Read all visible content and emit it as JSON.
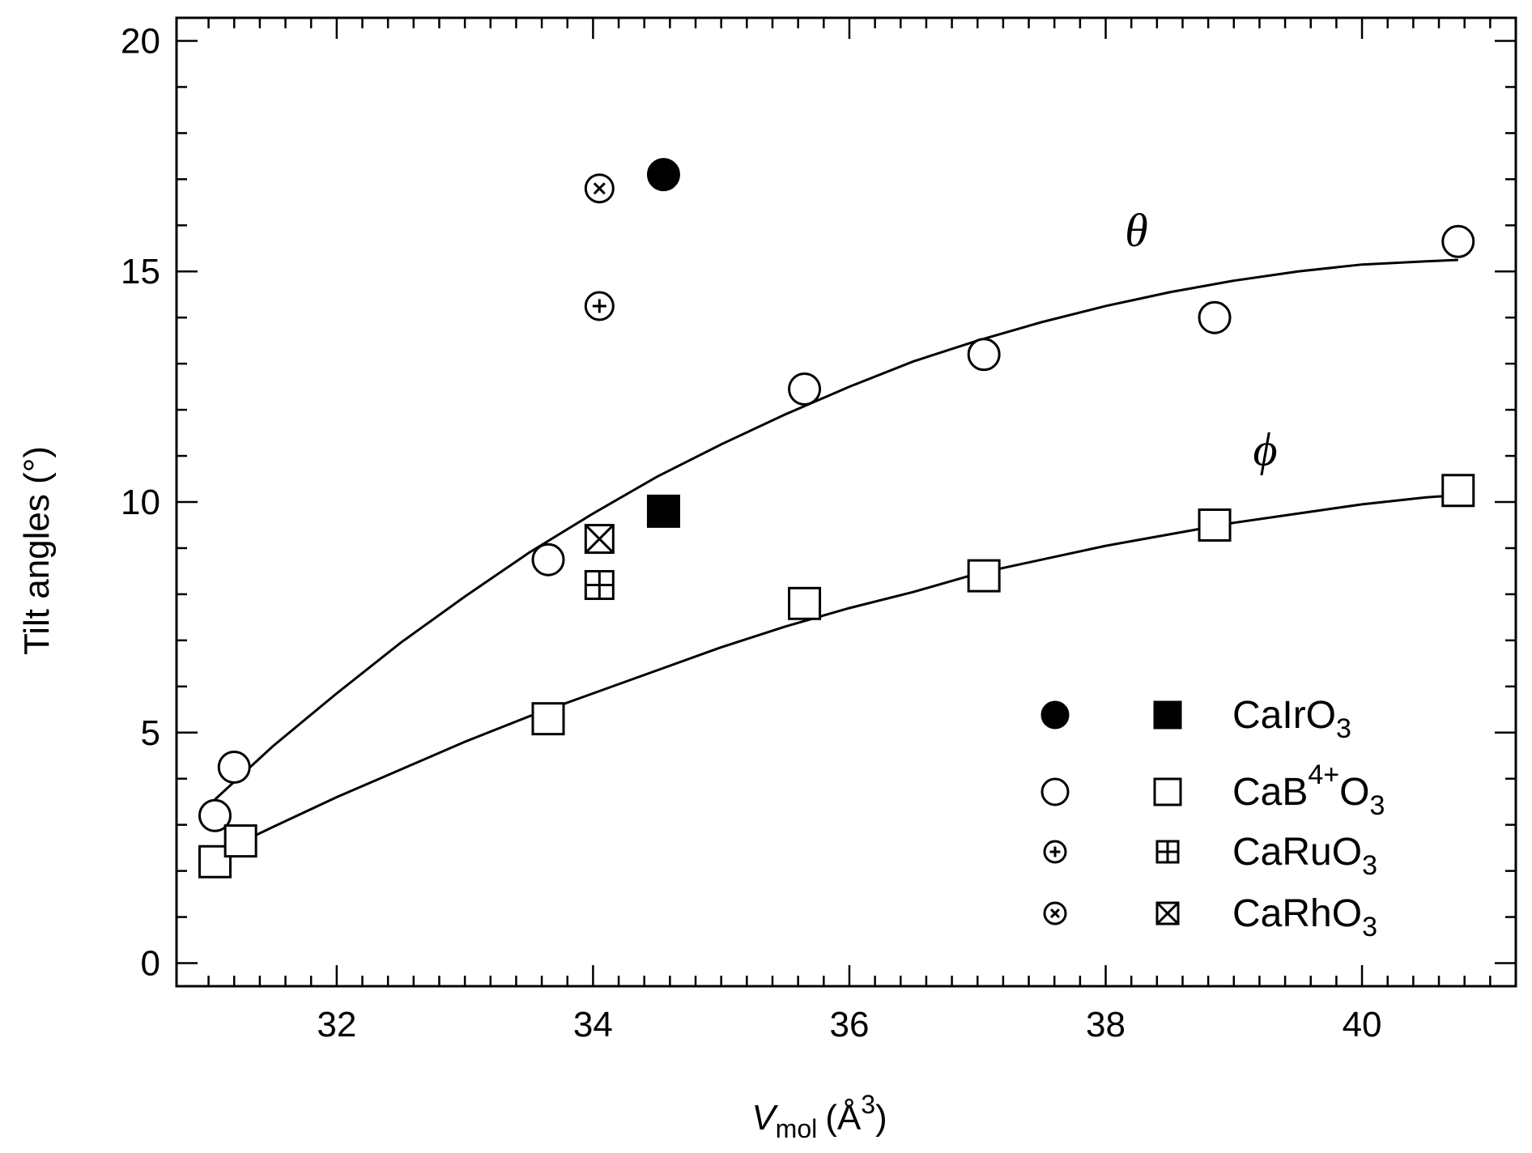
{
  "chart_data": {
    "type": "scatter",
    "title": "",
    "xlabel_main": "V",
    "xlabel_sub": "mol",
    "xlabel_units": "(Å",
    "xlabel_sup": "3",
    "xlabel_close": ")",
    "ylabel": "Tilt angles (°)",
    "xlim": [
      30.75,
      41.2
    ],
    "ylim": [
      -0.5,
      20.5
    ],
    "x_ticks": [
      "32",
      "34",
      "36",
      "38",
      "40"
    ],
    "x_tick_values": [
      32,
      34,
      36,
      38,
      40
    ],
    "y_ticks": [
      "0",
      "5",
      "10",
      "15",
      "20"
    ],
    "y_tick_values": [
      0,
      5,
      10,
      15,
      20
    ],
    "grid": false,
    "legend_position": "bottom-right",
    "series": [
      {
        "name": "CaIrO3 θ",
        "marker": "filled-circle",
        "points": [
          [
            34.55,
            17.1
          ]
        ]
      },
      {
        "name": "CaIrO3 φ",
        "marker": "filled-square",
        "points": [
          [
            34.55,
            9.8
          ]
        ]
      },
      {
        "name": "CaB4+O3 θ",
        "marker": "open-circle",
        "points": [
          [
            31.05,
            3.2
          ],
          [
            31.2,
            4.25
          ],
          [
            33.65,
            8.75
          ],
          [
            35.65,
            12.45
          ],
          [
            37.05,
            13.2
          ],
          [
            38.85,
            14.0
          ],
          [
            40.75,
            15.65
          ]
        ]
      },
      {
        "name": "CaB4+O3 φ",
        "marker": "open-square",
        "points": [
          [
            31.05,
            2.2
          ],
          [
            31.25,
            2.65
          ],
          [
            33.65,
            5.3
          ],
          [
            35.65,
            7.8
          ],
          [
            37.05,
            8.4
          ],
          [
            38.85,
            9.5
          ],
          [
            40.75,
            10.25
          ]
        ]
      },
      {
        "name": "CaRuO3 θ",
        "marker": "circle-plus",
        "points": [
          [
            34.05,
            14.25
          ]
        ]
      },
      {
        "name": "CaRuO3 φ",
        "marker": "square-plus",
        "points": [
          [
            34.05,
            8.2
          ]
        ]
      },
      {
        "name": "CaRhO3 θ",
        "marker": "circle-cross",
        "points": [
          [
            34.05,
            16.8
          ]
        ]
      },
      {
        "name": "CaRhO3 φ",
        "marker": "square-cross",
        "points": [
          [
            34.05,
            9.2
          ]
        ]
      }
    ],
    "fit_curves": [
      {
        "name": "theta-fit",
        "label": "θ",
        "x": [
          31.05,
          31.5,
          32.0,
          32.5,
          33.0,
          33.5,
          34.0,
          34.5,
          35.0,
          35.5,
          36.0,
          36.5,
          37.0,
          37.5,
          38.0,
          38.5,
          39.0,
          39.5,
          40.0,
          40.5,
          40.75
        ],
        "y": [
          3.55,
          4.7,
          5.85,
          6.95,
          7.95,
          8.9,
          9.75,
          10.55,
          11.25,
          11.9,
          12.5,
          13.05,
          13.5,
          13.9,
          14.25,
          14.55,
          14.8,
          15.0,
          15.15,
          15.22,
          15.25
        ]
      },
      {
        "name": "phi-fit",
        "label": "ϕ",
        "x": [
          31.05,
          31.5,
          32.0,
          32.5,
          33.0,
          33.5,
          34.0,
          34.5,
          35.0,
          35.5,
          36.0,
          36.5,
          37.0,
          37.5,
          38.0,
          38.5,
          39.0,
          39.5,
          40.0,
          40.5,
          40.75
        ],
        "y": [
          2.35,
          2.95,
          3.6,
          4.2,
          4.8,
          5.35,
          5.85,
          6.35,
          6.85,
          7.3,
          7.7,
          8.05,
          8.45,
          8.75,
          9.05,
          9.3,
          9.55,
          9.75,
          9.95,
          10.1,
          10.15
        ]
      }
    ],
    "curve_labels": [
      {
        "text": "θ",
        "x": 38.15,
        "y": 15.55
      },
      {
        "text": "ϕ",
        "x": 39.15,
        "y": 10.8
      }
    ],
    "legend": [
      {
        "compound": "CaIrO",
        "sup": "",
        "mid": "",
        "sub": "3",
        "circle": "filled-circle",
        "square": "filled-square"
      },
      {
        "compound": "CaB",
        "sup": "4+",
        "mid": "O",
        "sub": "3",
        "circle": "open-circle",
        "square": "open-square"
      },
      {
        "compound": "CaRuO",
        "sup": "",
        "mid": "",
        "sub": "3",
        "circle": "circle-plus",
        "square": "square-plus"
      },
      {
        "compound": "CaRhO",
        "sup": "",
        "mid": "",
        "sub": "3",
        "circle": "circle-cross",
        "square": "square-cross"
      }
    ]
  }
}
